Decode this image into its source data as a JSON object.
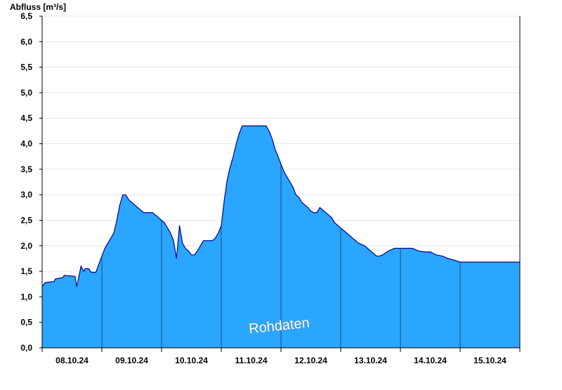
{
  "chart_data": {
    "type": "area",
    "title": "",
    "ylabel": "Abfluss [m³/s]",
    "xlabel": "",
    "ylim": [
      0,
      6.5
    ],
    "yticks": [
      "0,0",
      "0,5",
      "1,0",
      "1,5",
      "2,0",
      "2,5",
      "3,0",
      "3,5",
      "4,0",
      "4,5",
      "5,0",
      "5,5",
      "6,0",
      "6,5"
    ],
    "ytick_values": [
      0,
      0.5,
      1,
      1.5,
      2,
      2.5,
      3,
      3.5,
      4,
      4.5,
      5,
      5.5,
      6,
      6.5
    ],
    "xticks": [
      "08.10.24",
      "09.10.24",
      "10.10.24",
      "11.10.24",
      "12.10.24",
      "13.10.24",
      "14.10.24",
      "15.10.24"
    ],
    "x_unit": "days since 08.10.24 00:00",
    "xlim": [
      0,
      8
    ],
    "grid": true,
    "watermark": "Rohdaten",
    "colors": {
      "fill": "#2aa6ff",
      "line": "#00008b",
      "grid": "#e6e6e6",
      "axis": "#000000"
    },
    "series": [
      {
        "name": "",
        "x": [
          0,
          0.05,
          0.2,
          0.22,
          0.35,
          0.37,
          0.55,
          0.58,
          0.65,
          0.7,
          0.72,
          0.78,
          0.82,
          0.9,
          1.0,
          1.05,
          1.1,
          1.15,
          1.2,
          1.25,
          1.3,
          1.35,
          1.4,
          1.45,
          1.5,
          1.55,
          1.6,
          1.65,
          1.7,
          1.75,
          1.8,
          1.85,
          1.9,
          1.95,
          2.0,
          2.05,
          2.1,
          2.15,
          2.2,
          2.25,
          2.3,
          2.35,
          2.4,
          2.45,
          2.5,
          2.55,
          2.6,
          2.65,
          2.7,
          2.75,
          2.8,
          2.85,
          2.9,
          2.95,
          3.0,
          3.05,
          3.1,
          3.15,
          3.2,
          3.25,
          3.3,
          3.35,
          3.4,
          3.45,
          3.5,
          3.55,
          3.6,
          3.65,
          3.7,
          3.75,
          3.8,
          3.85,
          3.9,
          3.95,
          4.0,
          4.05,
          4.1,
          4.15,
          4.2,
          4.25,
          4.3,
          4.35,
          4.4,
          4.45,
          4.5,
          4.55,
          4.6,
          4.65,
          4.7,
          4.75,
          4.8,
          4.85,
          4.9,
          4.95,
          5.0,
          5.05,
          5.1,
          5.15,
          5.2,
          5.3,
          5.4,
          5.5,
          5.55,
          5.6,
          5.65,
          5.7,
          5.8,
          5.9,
          6.0,
          6.1,
          6.2,
          6.3,
          6.4,
          6.5,
          6.6,
          6.7,
          6.8,
          6.9,
          7.0,
          7.1,
          7.2,
          7.3,
          7.4,
          7.5,
          7.6,
          7.7,
          7.8,
          7.9,
          8.0
        ],
        "y": [
          1.2,
          1.28,
          1.3,
          1.35,
          1.38,
          1.42,
          1.4,
          1.2,
          1.6,
          1.5,
          1.55,
          1.55,
          1.48,
          1.48,
          1.8,
          1.95,
          2.05,
          2.15,
          2.25,
          2.5,
          2.8,
          3.0,
          3.0,
          2.9,
          2.85,
          2.8,
          2.75,
          2.7,
          2.65,
          2.65,
          2.65,
          2.65,
          2.6,
          2.55,
          2.5,
          2.45,
          2.35,
          2.25,
          2.1,
          1.75,
          2.4,
          2.05,
          1.95,
          1.9,
          1.82,
          1.82,
          1.9,
          2.0,
          2.1,
          2.1,
          2.1,
          2.1,
          2.15,
          2.25,
          2.4,
          2.9,
          3.3,
          3.55,
          3.75,
          4.0,
          4.2,
          4.35,
          4.35,
          4.35,
          4.35,
          4.35,
          4.35,
          4.35,
          4.35,
          4.35,
          4.25,
          4.1,
          3.9,
          3.75,
          3.6,
          3.45,
          3.35,
          3.25,
          3.15,
          3.0,
          2.95,
          2.85,
          2.8,
          2.75,
          2.68,
          2.65,
          2.65,
          2.75,
          2.7,
          2.65,
          2.6,
          2.55,
          2.45,
          2.4,
          2.35,
          2.3,
          2.25,
          2.2,
          2.15,
          2.05,
          2.0,
          1.9,
          1.85,
          1.8,
          1.8,
          1.82,
          1.9,
          1.95,
          1.95,
          1.95,
          1.95,
          1.9,
          1.88,
          1.88,
          1.82,
          1.8,
          1.75,
          1.72,
          1.68,
          1.68,
          1.68,
          1.68,
          1.68,
          1.68,
          1.68,
          1.68,
          1.68,
          1.68,
          1.68
        ]
      }
    ]
  }
}
